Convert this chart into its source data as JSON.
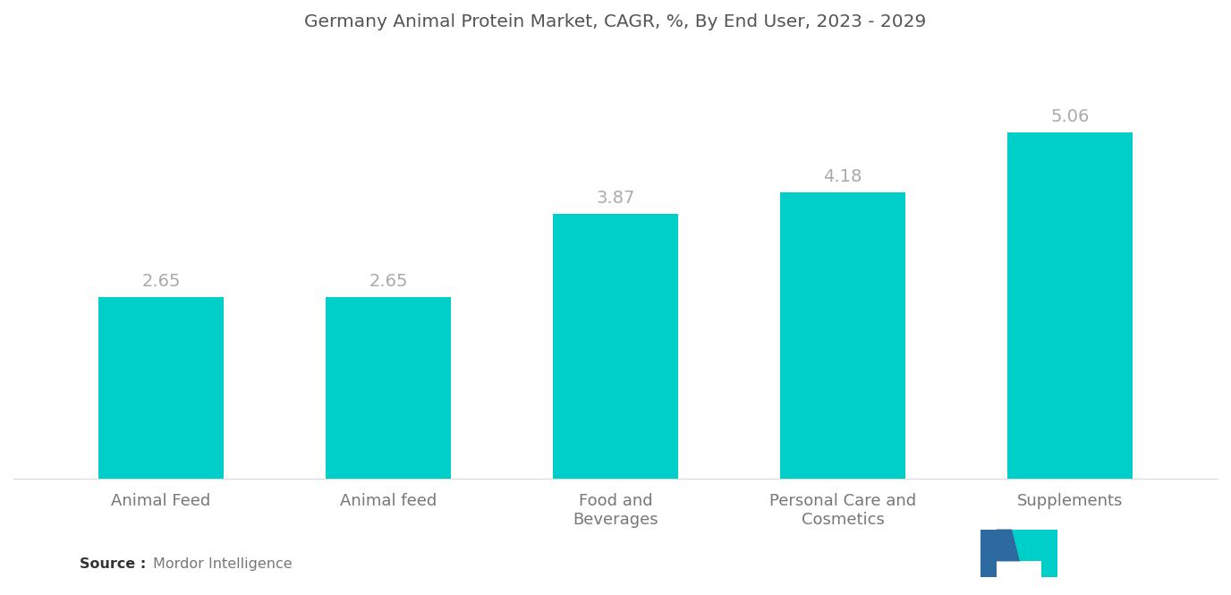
{
  "title": "Germany Animal Protein Market, CAGR, %, By End User, 2023 - 2029",
  "categories": [
    "Animal Feed",
    "Animal feed",
    "Food and\nBeverages",
    "Personal Care and\nCosmetics",
    "Supplements"
  ],
  "values": [
    2.65,
    2.65,
    3.87,
    4.18,
    5.06
  ],
  "bar_color": "#00CEC9",
  "label_color": "#aaaaaa",
  "title_color": "#555555",
  "xlabel_color": "#777777",
  "background_color": "#FFFFFF",
  "ylim": [
    0,
    6.2
  ],
  "bar_width": 0.55,
  "title_fontsize": 14.5,
  "label_fontsize": 14,
  "xtick_fontsize": 13,
  "logo_blue": "#2d6a9f",
  "logo_teal": "#00CEC9"
}
